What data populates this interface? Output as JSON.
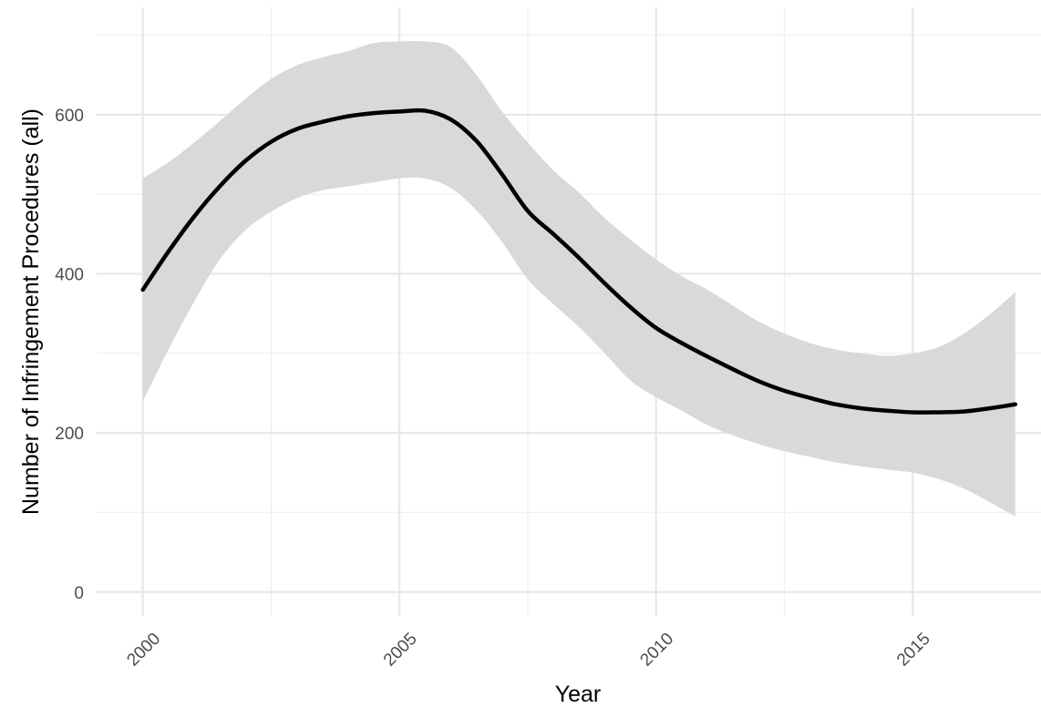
{
  "chart_data": {
    "type": "line",
    "title": "",
    "xlabel": "Year",
    "ylabel": "Number of Infringement Procedures (all)",
    "xlim": [
      1999.1,
      2017.5
    ],
    "ylim": [
      -30,
      735
    ],
    "x_ticks": [
      2000,
      2005,
      2010,
      2015
    ],
    "x_tick_labels": [
      "2000",
      "2005",
      "2010",
      "2015"
    ],
    "x_minor_ticks": [
      2002.5,
      2007.5,
      2012.5
    ],
    "y_ticks": [
      0,
      200,
      400,
      600
    ],
    "y_tick_labels": [
      "0",
      "200",
      "400",
      "600"
    ],
    "y_minor_ticks": [
      100,
      300,
      500,
      700
    ],
    "grid": true,
    "legend": "none",
    "series": [
      {
        "style": "smooth fit line",
        "color": "#000000",
        "x": [
          2000,
          2000.5,
          2001,
          2001.5,
          2002,
          2002.5,
          2003,
          2003.5,
          2004,
          2004.5,
          2005,
          2005.5,
          2006,
          2006.5,
          2007,
          2007.5,
          2008,
          2008.5,
          2009,
          2009.5,
          2010,
          2010.5,
          2011,
          2011.5,
          2012,
          2012.5,
          2013,
          2013.5,
          2014,
          2014.5,
          2015,
          2015.5,
          2016,
          2016.5,
          2017
        ],
        "y": [
          380,
          428,
          472,
          510,
          542,
          566,
          582,
          591,
          598,
          602,
          604,
          605,
          594,
          567,
          525,
          479,
          450,
          420,
          388,
          358,
          332,
          313,
          296,
          280,
          265,
          253,
          244,
          236,
          231,
          228,
          226,
          226,
          227,
          231,
          236
        ]
      }
    ],
    "confidence_band": {
      "color": "#d9d9d9",
      "x": [
        2000,
        2000.5,
        2001,
        2001.5,
        2002,
        2002.5,
        2003,
        2003.5,
        2004,
        2004.5,
        2005,
        2005.5,
        2006,
        2006.5,
        2007,
        2007.5,
        2008,
        2008.5,
        2009,
        2009.5,
        2010,
        2010.5,
        2011,
        2011.5,
        2012,
        2012.5,
        2013,
        2013.5,
        2014,
        2014.5,
        2015,
        2015.5,
        2016,
        2016.5,
        2017
      ],
      "lower": [
        240,
        305,
        365,
        418,
        455,
        478,
        495,
        505,
        510,
        515,
        520,
        520,
        508,
        480,
        440,
        393,
        362,
        333,
        300,
        266,
        245,
        228,
        210,
        197,
        186,
        177,
        170,
        163,
        158,
        154,
        150,
        142,
        130,
        113,
        95
      ],
      "upper": [
        520,
        540,
        565,
        592,
        620,
        645,
        662,
        672,
        680,
        690,
        692,
        692,
        685,
        650,
        604,
        565,
        530,
        502,
        470,
        443,
        418,
        397,
        380,
        360,
        340,
        325,
        313,
        305,
        300,
        297,
        300,
        308,
        325,
        349,
        377
      ]
    }
  }
}
